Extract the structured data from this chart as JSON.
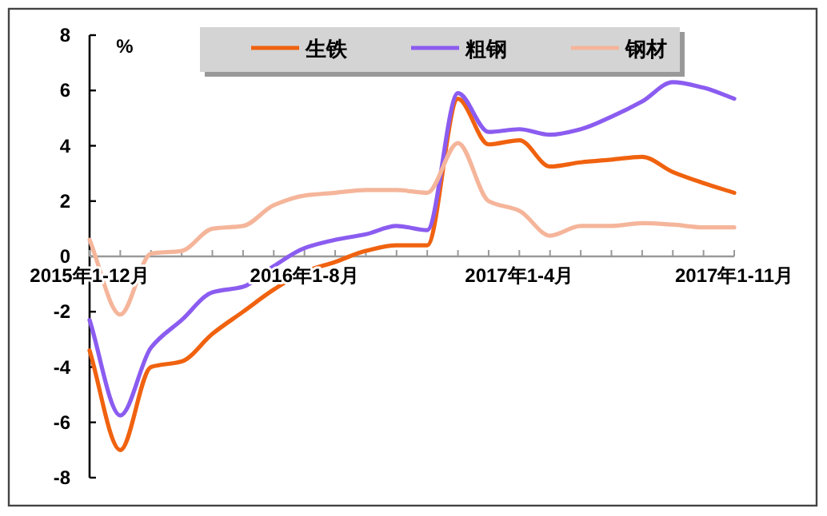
{
  "chart_data": {
    "type": "line",
    "ylabel": "%",
    "categories": [
      "2015年1-12月",
      null,
      null,
      null,
      null,
      null,
      null,
      "2016年1-8月",
      null,
      null,
      null,
      null,
      null,
      null,
      "2017年1-4月",
      null,
      null,
      null,
      null,
      null,
      null,
      "2017年1-11月"
    ],
    "series": [
      {
        "name": "生铁",
        "color": "#f0620f",
        "values": [
          -3.4,
          -7.0,
          -4.0,
          -3.8,
          -2.8,
          -2.0,
          -1.2,
          -0.55,
          -0.2,
          0.2,
          0.4,
          0.4,
          5.7,
          4.05,
          4.2,
          3.25,
          3.4,
          3.5,
          3.6,
          3.05,
          2.65,
          2.3
        ]
      },
      {
        "name": "粗钢",
        "color": "#8b5cf0",
        "values": [
          -2.3,
          -5.75,
          -3.3,
          -2.3,
          -1.3,
          -1.1,
          -0.35,
          0.3,
          0.6,
          0.8,
          1.1,
          0.95,
          5.9,
          4.5,
          4.6,
          4.4,
          4.6,
          5.05,
          5.6,
          6.3,
          6.1,
          5.7
        ]
      },
      {
        "name": "钢材",
        "color": "#f5b59a",
        "values": [
          0.6,
          -2.1,
          0.1,
          0.2,
          1.0,
          1.1,
          1.85,
          2.2,
          2.3,
          2.4,
          2.4,
          2.3,
          4.1,
          2.0,
          1.65,
          0.75,
          1.1,
          1.1,
          1.2,
          1.15,
          1.05,
          1.05
        ]
      }
    ],
    "ylim": [
      -8,
      8
    ],
    "yticks": [
      -8,
      -6,
      -4,
      -2,
      0,
      2,
      4,
      6,
      8
    ],
    "grid": false,
    "legend": "top",
    "marker": "none",
    "line_style": "solid"
  }
}
